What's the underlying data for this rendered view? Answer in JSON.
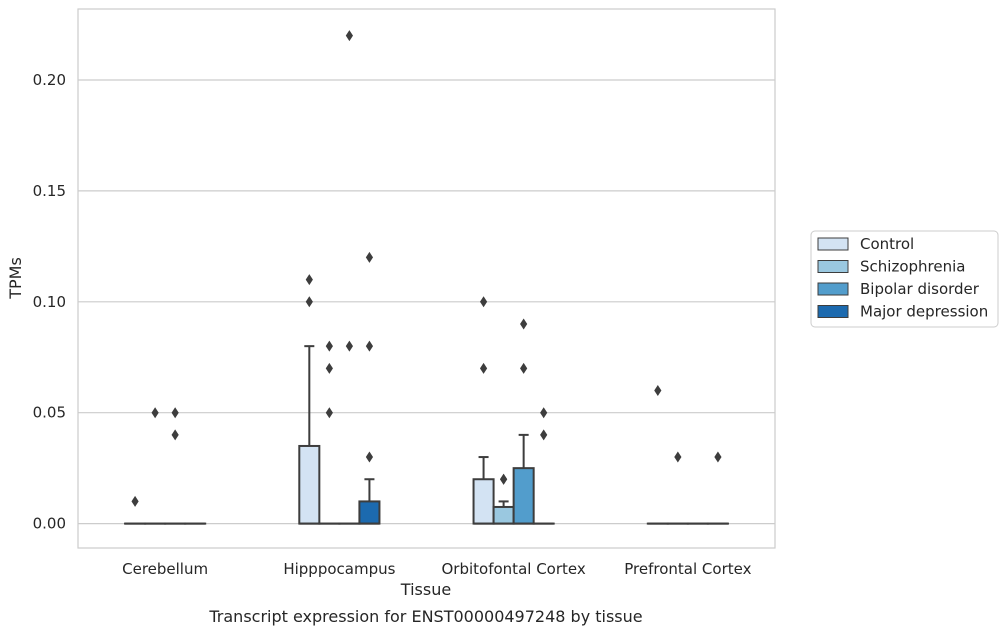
{
  "chart_data": {
    "type": "box",
    "title": "",
    "caption": "Transcript expression for ENST00000497248 by tissue",
    "xlabel": "Tissue",
    "ylabel": "TPMs",
    "ylim": [
      -0.011,
      0.232
    ],
    "yticks": [
      "0.00",
      "0.05",
      "0.10",
      "0.15",
      "0.20"
    ],
    "ytick_values": [
      0.0,
      0.05,
      0.1,
      0.15,
      0.2
    ],
    "grid": true,
    "legend_position": "right",
    "categories": [
      "Cerebellum",
      "Hipppocampus",
      "Orbitofontal Cortex",
      "Prefrontal Cortex"
    ],
    "series": [
      {
        "name": "Control",
        "color": "#d3e3f3"
      },
      {
        "name": "Schizophrenia",
        "color": "#9ac8e0"
      },
      {
        "name": "Bipolar disorder",
        "color": "#529dcc"
      },
      {
        "name": "Major depression",
        "color": "#1c6aaf"
      }
    ],
    "boxes": [
      [
        {
          "q1": 0,
          "median": 0,
          "q3": 0,
          "whisker_low": 0,
          "whisker_high": 0,
          "outliers": [
            0.01
          ]
        },
        {
          "q1": 0,
          "median": 0,
          "q3": 0,
          "whisker_low": 0,
          "whisker_high": 0,
          "outliers": [
            0.05
          ]
        },
        {
          "q1": 0,
          "median": 0,
          "q3": 0,
          "whisker_low": 0,
          "whisker_high": 0,
          "outliers": [
            0.05,
            0.04
          ]
        },
        {
          "q1": 0,
          "median": 0,
          "q3": 0,
          "whisker_low": 0,
          "whisker_high": 0,
          "outliers": []
        }
      ],
      [
        {
          "q1": 0,
          "median": 0,
          "q3": 0.035,
          "whisker_low": 0,
          "whisker_high": 0.08,
          "outliers": [
            0.11,
            0.1
          ]
        },
        {
          "q1": 0,
          "median": 0,
          "q3": 0,
          "whisker_low": 0,
          "whisker_high": 0,
          "outliers": [
            0.08,
            0.07,
            0.05
          ]
        },
        {
          "q1": 0,
          "median": 0,
          "q3": 0,
          "whisker_low": 0,
          "whisker_high": 0,
          "outliers": [
            0.22,
            0.08
          ]
        },
        {
          "q1": 0,
          "median": 0,
          "q3": 0.01,
          "whisker_low": 0,
          "whisker_high": 0.02,
          "outliers": [
            0.12,
            0.08,
            0.03
          ]
        }
      ],
      [
        {
          "q1": 0,
          "median": 0,
          "q3": 0.02,
          "whisker_low": 0,
          "whisker_high": 0.03,
          "outliers": [
            0.1,
            0.07
          ]
        },
        {
          "q1": 0,
          "median": 0,
          "q3": 0.0075,
          "whisker_low": 0,
          "whisker_high": 0.01,
          "outliers": [
            0.02,
            0.02
          ]
        },
        {
          "q1": 0,
          "median": 0,
          "q3": 0.025,
          "whisker_low": 0,
          "whisker_high": 0.04,
          "outliers": [
            0.09,
            0.07
          ]
        },
        {
          "q1": 0,
          "median": 0,
          "q3": 0,
          "whisker_low": 0,
          "whisker_high": 0,
          "outliers": [
            0.05,
            0.04
          ]
        }
      ],
      [
        {
          "q1": 0,
          "median": 0,
          "q3": 0,
          "whisker_low": 0,
          "whisker_high": 0,
          "outliers": [
            0.06
          ]
        },
        {
          "q1": 0,
          "median": 0,
          "q3": 0,
          "whisker_low": 0,
          "whisker_high": 0,
          "outliers": [
            0.03
          ]
        },
        {
          "q1": 0,
          "median": 0,
          "q3": 0,
          "whisker_low": 0,
          "whisker_high": 0,
          "outliers": []
        },
        {
          "q1": 0,
          "median": 0,
          "q3": 0,
          "whisker_low": 0,
          "whisker_high": 0,
          "outliers": [
            0.03
          ]
        }
      ]
    ]
  }
}
